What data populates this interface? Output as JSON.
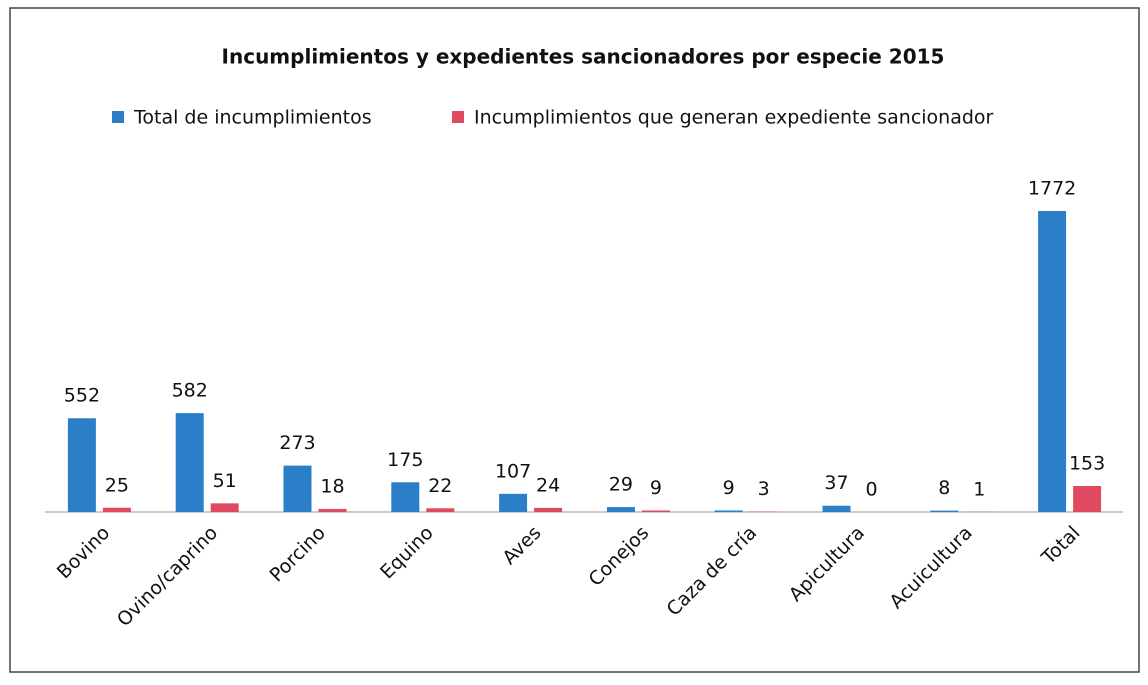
{
  "chart_data": {
    "type": "bar",
    "title": "Incumplimientos y expedientes sancionadores  por especie 2015",
    "categories": [
      "Bovino",
      "Ovino/caprino",
      "Porcino",
      "Equino",
      "Aves",
      "Conejos",
      "Caza de cría",
      "Apicultura",
      "Acuicultura",
      "Total"
    ],
    "series": [
      {
        "name": "Total de incumplimientos",
        "color": "#2b7fc8",
        "values": [
          552,
          582,
          273,
          175,
          107,
          29,
          9,
          37,
          8,
          1772
        ]
      },
      {
        "name": "Incumplimientos que generan expediente sancionador",
        "color": "#e04a60",
        "values": [
          25,
          51,
          18,
          22,
          24,
          9,
          3,
          0,
          1,
          153
        ]
      }
    ],
    "legend": "top"
  }
}
